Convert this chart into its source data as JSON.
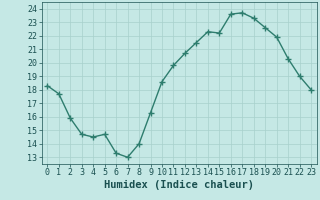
{
  "x": [
    0,
    1,
    2,
    3,
    4,
    5,
    6,
    7,
    8,
    9,
    10,
    11,
    12,
    13,
    14,
    15,
    16,
    17,
    18,
    19,
    20,
    21,
    22,
    23
  ],
  "y": [
    18.3,
    17.7,
    15.9,
    14.7,
    14.5,
    14.7,
    13.3,
    13.0,
    14.0,
    16.3,
    18.6,
    19.8,
    20.7,
    21.5,
    22.3,
    22.2,
    23.6,
    23.7,
    23.3,
    22.6,
    21.9,
    20.3,
    19.0,
    18.0
  ],
  "line_color": "#2e7d6e",
  "marker": "+",
  "marker_size": 4,
  "line_width": 1.0,
  "xlabel": "Humidex (Indice chaleur)",
  "xlim": [
    -0.5,
    23.5
  ],
  "ylim": [
    12.5,
    24.5
  ],
  "yticks": [
    13,
    14,
    15,
    16,
    17,
    18,
    19,
    20,
    21,
    22,
    23,
    24
  ],
  "xticks": [
    0,
    1,
    2,
    3,
    4,
    5,
    6,
    7,
    8,
    9,
    10,
    11,
    12,
    13,
    14,
    15,
    16,
    17,
    18,
    19,
    20,
    21,
    22,
    23
  ],
  "background_color": "#c5e8e5",
  "grid_color": "#a8d0cc",
  "tick_color": "#1a5050",
  "font_color": "#1a5050",
  "xlabel_fontsize": 7.5,
  "tick_fontsize": 6,
  "figsize": [
    3.2,
    2.0
  ],
  "dpi": 100
}
